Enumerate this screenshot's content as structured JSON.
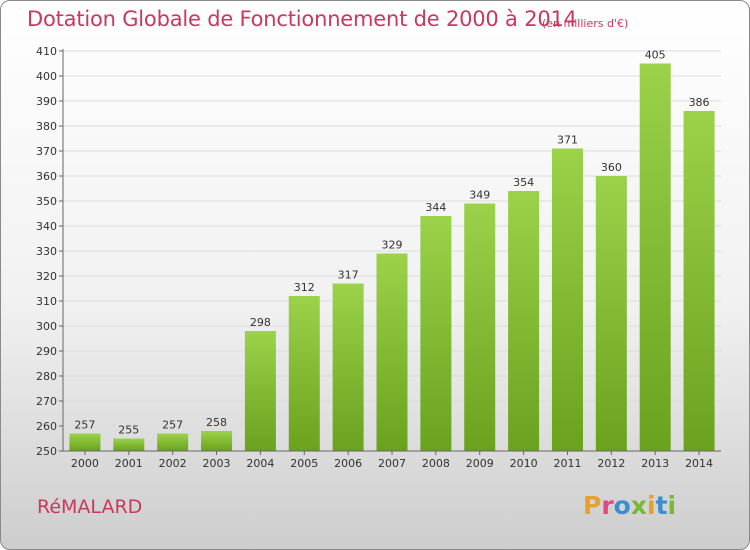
{
  "header": {
    "title": "Dotation Globale de Fonctionnement de 2000 à 2014",
    "subtitle": "(en milliers d'€)"
  },
  "footer": {
    "commune": "RéMALARD",
    "logo_letters": [
      "P",
      "r",
      "o",
      "x",
      "i",
      "t",
      "i"
    ],
    "logo_colors": [
      "#e5a12e",
      "#e04a7e",
      "#3a8fd0",
      "#7ab833",
      "#e5a12e",
      "#3a8fd0",
      "#7ab833"
    ]
  },
  "chart_data": {
    "type": "bar",
    "title": "Dotation Globale de Fonctionnement de 2000 à 2014",
    "subtitle": "(en milliers d'€)",
    "xlabel": "",
    "ylabel": "",
    "categories": [
      "2000",
      "2001",
      "2002",
      "2003",
      "2004",
      "2005",
      "2006",
      "2007",
      "2008",
      "2009",
      "2010",
      "2011",
      "2012",
      "2013",
      "2014"
    ],
    "values": [
      257,
      255,
      257,
      258,
      298,
      312,
      317,
      329,
      344,
      349,
      354,
      371,
      360,
      405,
      386
    ],
    "ylim": [
      250,
      410
    ],
    "yticks": [
      250,
      260,
      270,
      280,
      290,
      300,
      310,
      320,
      330,
      340,
      350,
      360,
      370,
      380,
      390,
      400,
      410
    ],
    "grid": true,
    "bar_color": "#8cc63f",
    "bar_color_dark": "#6aa21e",
    "text_color": "#c8385f"
  }
}
